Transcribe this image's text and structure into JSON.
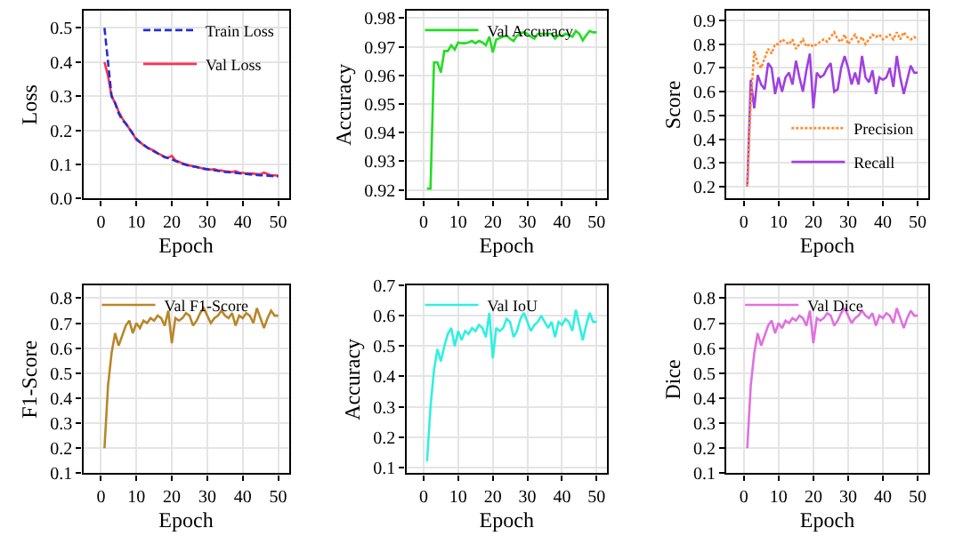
{
  "chart_data": [
    {
      "type": "line",
      "xlabel": "Epoch",
      "ylabel": "Loss",
      "xlim": [
        -5,
        53
      ],
      "xticks": [
        0,
        10,
        20,
        30,
        40,
        50
      ],
      "ylim": [
        0,
        0.55
      ],
      "yticks": [
        {
          "value": 0,
          "label": "0.0"
        },
        0.1,
        0.2,
        0.3,
        0.4,
        0.5
      ],
      "grid": true,
      "legend": "top right",
      "x": [
        1,
        2,
        3,
        4,
        5,
        6,
        7,
        8,
        9,
        10,
        11,
        12,
        13,
        14,
        15,
        16,
        17,
        18,
        19,
        20,
        21,
        22,
        23,
        24,
        25,
        26,
        27,
        28,
        29,
        30,
        31,
        32,
        33,
        34,
        35,
        36,
        37,
        38,
        39,
        40,
        41,
        42,
        43,
        44,
        45,
        46,
        47,
        48,
        49,
        50
      ],
      "series": [
        {
          "name": "Train Loss",
          "color": "#2030d0",
          "line_style": "dashed",
          "values": [
            0.5,
            0.4,
            0.3,
            0.28,
            0.25,
            0.23,
            0.22,
            0.205,
            0.19,
            0.175,
            0.165,
            0.158,
            0.15,
            0.143,
            0.138,
            0.132,
            0.127,
            0.122,
            0.118,
            0.115,
            0.11,
            0.106,
            0.102,
            0.099,
            0.096,
            0.094,
            0.092,
            0.09,
            0.088,
            0.086,
            0.084,
            0.083,
            0.081,
            0.08,
            0.078,
            0.077,
            0.076,
            0.075,
            0.074,
            0.073,
            0.072,
            0.071,
            0.07,
            0.069,
            0.068,
            0.068,
            0.067,
            0.066,
            0.065,
            0.065
          ]
        },
        {
          "name": "Val Loss",
          "color": "#ff3050",
          "line_style": "solid",
          "values": [
            0.4,
            0.36,
            0.3,
            0.28,
            0.255,
            0.235,
            0.22,
            0.205,
            0.19,
            0.172,
            0.165,
            0.157,
            0.15,
            0.145,
            0.14,
            0.133,
            0.128,
            0.12,
            0.12,
            0.125,
            0.112,
            0.108,
            0.103,
            0.1,
            0.097,
            0.095,
            0.093,
            0.09,
            0.087,
            0.086,
            0.085,
            0.086,
            0.083,
            0.082,
            0.08,
            0.079,
            0.078,
            0.08,
            0.076,
            0.075,
            0.074,
            0.074,
            0.073,
            0.072,
            0.071,
            0.076,
            0.072,
            0.068,
            0.068,
            0.067
          ]
        }
      ]
    },
    {
      "type": "line",
      "xlabel": "Epoch",
      "ylabel": "Accuracy",
      "xlim": [
        -5,
        53
      ],
      "xticks": [
        0,
        10,
        20,
        30,
        40,
        50
      ],
      "ylim": [
        0.917,
        0.9825
      ],
      "yticks": [
        0.92,
        0.93,
        0.94,
        0.95,
        0.96,
        0.97,
        0.98
      ],
      "grid": true,
      "legend": "top left",
      "x": [
        1,
        2,
        3,
        4,
        5,
        6,
        7,
        8,
        9,
        10,
        11,
        12,
        13,
        14,
        15,
        16,
        17,
        18,
        19,
        20,
        21,
        22,
        23,
        24,
        25,
        26,
        27,
        28,
        29,
        30,
        31,
        32,
        33,
        34,
        35,
        36,
        37,
        38,
        39,
        40,
        41,
        42,
        43,
        44,
        45,
        46,
        47,
        48,
        49,
        50
      ],
      "series": [
        {
          "name": "Val Accuracy",
          "color": "#22dd22",
          "line_style": "solid",
          "values": [
            0.9205,
            0.9205,
            0.9645,
            0.9645,
            0.961,
            0.9685,
            0.9685,
            0.9705,
            0.969,
            0.9715,
            0.9712,
            0.9712,
            0.9715,
            0.972,
            0.9712,
            0.972,
            0.9715,
            0.9705,
            0.9735,
            0.968,
            0.9725,
            0.973,
            0.9735,
            0.9738,
            0.9728,
            0.972,
            0.9738,
            0.9748,
            0.975,
            0.9745,
            0.9735,
            0.9728,
            0.9745,
            0.9745,
            0.9745,
            0.9745,
            0.9745,
            0.9728,
            0.974,
            0.9738,
            0.9745,
            0.974,
            0.9735,
            0.9755,
            0.9745,
            0.9722,
            0.974,
            0.9755,
            0.975,
            0.975
          ]
        }
      ]
    },
    {
      "type": "line",
      "xlabel": "Epoch",
      "ylabel": "Score",
      "xlim": [
        -5,
        53
      ],
      "xticks": [
        0,
        10,
        20,
        30,
        40,
        50
      ],
      "ylim": [
        0.15,
        0.94
      ],
      "yticks": [
        0.2,
        0.3,
        0.4,
        0.5,
        0.6,
        0.7,
        0.8,
        0.9
      ],
      "grid": true,
      "legend": "bottom right",
      "x": [
        1,
        2,
        3,
        4,
        5,
        6,
        7,
        8,
        9,
        10,
        11,
        12,
        13,
        14,
        15,
        16,
        17,
        18,
        19,
        20,
        21,
        22,
        23,
        24,
        25,
        26,
        27,
        28,
        29,
        30,
        31,
        32,
        33,
        34,
        35,
        36,
        37,
        38,
        39,
        40,
        41,
        42,
        43,
        44,
        45,
        46,
        47,
        48,
        49,
        50
      ],
      "series": [
        {
          "name": "Precision",
          "color": "#ff8c30",
          "line_style": "dotted",
          "values": [
            0.2,
            0.55,
            0.77,
            0.72,
            0.7,
            0.74,
            0.78,
            0.76,
            0.8,
            0.8,
            0.82,
            0.81,
            0.8,
            0.82,
            0.78,
            0.8,
            0.82,
            0.79,
            0.8,
            0.79,
            0.8,
            0.81,
            0.82,
            0.81,
            0.83,
            0.85,
            0.82,
            0.81,
            0.84,
            0.8,
            0.82,
            0.84,
            0.81,
            0.83,
            0.8,
            0.82,
            0.84,
            0.83,
            0.84,
            0.82,
            0.83,
            0.84,
            0.82,
            0.85,
            0.82,
            0.85,
            0.83,
            0.82,
            0.83,
            0.82
          ]
        },
        {
          "name": "Recall",
          "color": "#a040e0",
          "line_style": "solid",
          "values": [
            0.2,
            0.65,
            0.53,
            0.67,
            0.63,
            0.61,
            0.72,
            0.7,
            0.59,
            0.66,
            0.6,
            0.66,
            0.68,
            0.63,
            0.73,
            0.66,
            0.6,
            0.69,
            0.76,
            0.53,
            0.68,
            0.66,
            0.67,
            0.7,
            0.72,
            0.6,
            0.61,
            0.7,
            0.75,
            0.7,
            0.63,
            0.68,
            0.63,
            0.75,
            0.66,
            0.64,
            0.69,
            0.59,
            0.66,
            0.65,
            0.66,
            0.7,
            0.62,
            0.75,
            0.66,
            0.59,
            0.65,
            0.71,
            0.68,
            0.68
          ]
        }
      ]
    },
    {
      "type": "line",
      "xlabel": "Epoch",
      "ylabel": "F1-Score",
      "xlim": [
        -5,
        53
      ],
      "xticks": [
        0,
        10,
        20,
        30,
        40,
        50
      ],
      "ylim": [
        0.1,
        0.85
      ],
      "yticks": [
        0.1,
        0.2,
        0.3,
        0.4,
        0.5,
        0.6,
        0.7,
        0.8
      ],
      "grid": true,
      "legend": "top left",
      "x": [
        1,
        2,
        3,
        4,
        5,
        6,
        7,
        8,
        9,
        10,
        11,
        12,
        13,
        14,
        15,
        16,
        17,
        18,
        19,
        20,
        21,
        22,
        23,
        24,
        25,
        26,
        27,
        28,
        29,
        30,
        31,
        32,
        33,
        34,
        35,
        36,
        37,
        38,
        39,
        40,
        41,
        42,
        43,
        44,
        45,
        46,
        47,
        48,
        49,
        50
      ],
      "series": [
        {
          "name": "Val F1-Score",
          "color": "#b8862a",
          "line_style": "solid",
          "values": [
            0.2,
            0.45,
            0.58,
            0.66,
            0.61,
            0.65,
            0.69,
            0.71,
            0.66,
            0.7,
            0.68,
            0.71,
            0.7,
            0.72,
            0.71,
            0.73,
            0.72,
            0.69,
            0.75,
            0.62,
            0.72,
            0.71,
            0.72,
            0.74,
            0.73,
            0.69,
            0.71,
            0.74,
            0.76,
            0.73,
            0.7,
            0.72,
            0.73,
            0.75,
            0.73,
            0.72,
            0.74,
            0.69,
            0.73,
            0.72,
            0.74,
            0.73,
            0.7,
            0.76,
            0.72,
            0.68,
            0.72,
            0.75,
            0.73,
            0.73
          ]
        }
      ]
    },
    {
      "type": "line",
      "xlabel": "Epoch",
      "ylabel": "Accuracy",
      "xlim": [
        -5,
        53
      ],
      "xticks": [
        0,
        10,
        20,
        30,
        40,
        50
      ],
      "ylim": [
        0.08,
        0.7
      ],
      "yticks": [
        0.1,
        0.2,
        0.3,
        0.4,
        0.5,
        0.6,
        0.7
      ],
      "grid": true,
      "legend": "top left",
      "x": [
        1,
        2,
        3,
        4,
        5,
        6,
        7,
        8,
        9,
        10,
        11,
        12,
        13,
        14,
        15,
        16,
        17,
        18,
        19,
        20,
        21,
        22,
        23,
        24,
        25,
        26,
        27,
        28,
        29,
        30,
        31,
        32,
        33,
        34,
        35,
        36,
        37,
        38,
        39,
        40,
        41,
        42,
        43,
        44,
        45,
        46,
        47,
        48,
        49,
        50
      ],
      "series": [
        {
          "name": "Val IoU",
          "color": "#30f0e0",
          "line_style": "solid",
          "values": [
            0.12,
            0.3,
            0.42,
            0.49,
            0.45,
            0.5,
            0.54,
            0.56,
            0.5,
            0.55,
            0.52,
            0.55,
            0.54,
            0.56,
            0.55,
            0.57,
            0.56,
            0.53,
            0.61,
            0.46,
            0.56,
            0.55,
            0.56,
            0.59,
            0.58,
            0.53,
            0.55,
            0.59,
            0.61,
            0.58,
            0.55,
            0.57,
            0.58,
            0.6,
            0.58,
            0.56,
            0.58,
            0.53,
            0.58,
            0.57,
            0.59,
            0.58,
            0.55,
            0.62,
            0.57,
            0.52,
            0.57,
            0.61,
            0.58,
            0.58
          ]
        }
      ]
    },
    {
      "type": "line",
      "xlabel": "Epoch",
      "ylabel": "Dice",
      "xlim": [
        -5,
        53
      ],
      "xticks": [
        0,
        10,
        20,
        30,
        40,
        50
      ],
      "ylim": [
        0.1,
        0.85
      ],
      "yticks": [
        0.1,
        0.2,
        0.3,
        0.4,
        0.5,
        0.6,
        0.7,
        0.8
      ],
      "grid": true,
      "legend": "top left",
      "x": [
        1,
        2,
        3,
        4,
        5,
        6,
        7,
        8,
        9,
        10,
        11,
        12,
        13,
        14,
        15,
        16,
        17,
        18,
        19,
        20,
        21,
        22,
        23,
        24,
        25,
        26,
        27,
        28,
        29,
        30,
        31,
        32,
        33,
        34,
        35,
        36,
        37,
        38,
        39,
        40,
        41,
        42,
        43,
        44,
        45,
        46,
        47,
        48,
        49,
        50
      ],
      "series": [
        {
          "name": "Val Dice",
          "color": "#e070e0",
          "line_style": "solid",
          "values": [
            0.2,
            0.45,
            0.58,
            0.66,
            0.61,
            0.65,
            0.69,
            0.71,
            0.66,
            0.7,
            0.68,
            0.71,
            0.7,
            0.72,
            0.71,
            0.73,
            0.72,
            0.69,
            0.75,
            0.62,
            0.72,
            0.71,
            0.72,
            0.74,
            0.73,
            0.69,
            0.71,
            0.74,
            0.76,
            0.73,
            0.7,
            0.72,
            0.73,
            0.75,
            0.73,
            0.72,
            0.74,
            0.69,
            0.73,
            0.72,
            0.74,
            0.73,
            0.7,
            0.76,
            0.72,
            0.68,
            0.72,
            0.75,
            0.73,
            0.73
          ]
        }
      ]
    }
  ]
}
